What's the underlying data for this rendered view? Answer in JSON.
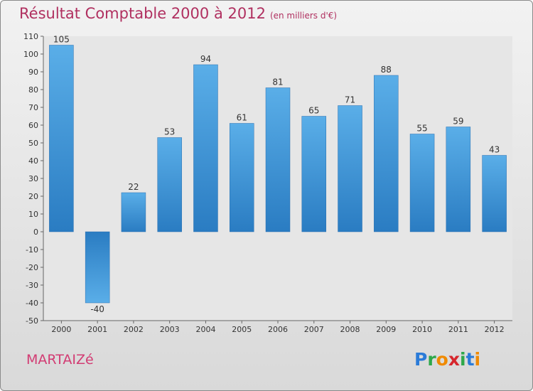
{
  "title": "Résultat Comptable 2000 à 2012",
  "unit": "(en milliers d'€)",
  "town": "MARTAIZé",
  "logo": {
    "letters": [
      "P",
      "r",
      "o",
      "x",
      "i",
      "t",
      "i"
    ],
    "colors": [
      "#2b7bd8",
      "#2ea84a",
      "#f08a00",
      "#d6262c",
      "#2ea84a",
      "#2b7bd8",
      "#f08a00"
    ]
  },
  "chart_data": {
    "type": "bar",
    "title": "Résultat Comptable 2000 à 2012",
    "categories": [
      "2000",
      "2001",
      "2002",
      "2003",
      "2004",
      "2005",
      "2006",
      "2007",
      "2008",
      "2009",
      "2010",
      "2011",
      "2012"
    ],
    "values": [
      105,
      -40,
      22,
      53,
      94,
      61,
      81,
      65,
      71,
      88,
      55,
      59,
      43
    ],
    "ylim": [
      -50,
      110
    ],
    "yticks": [
      110,
      100,
      90,
      80,
      70,
      60,
      50,
      40,
      30,
      20,
      10,
      0,
      -10,
      -20,
      -30,
      -40,
      -50
    ],
    "grid": false,
    "bar_color": "#3b8fd6"
  }
}
